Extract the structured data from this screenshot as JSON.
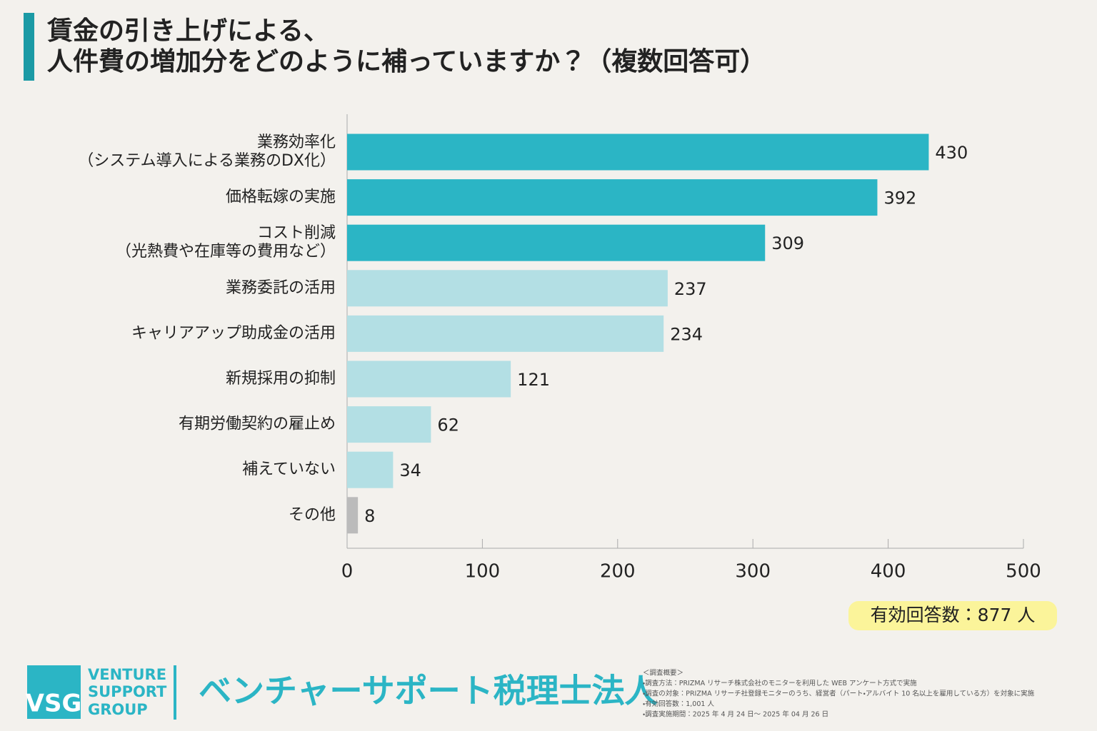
{
  "chart_data": {
    "type": "hbar",
    "title": [
      "賃金の引き上げによる、",
      "人件費の増加分をどのように補っていますか？（複数回答可）"
    ],
    "categories": [
      [
        "業務効率化",
        "（システム導入による業務のDX化）"
      ],
      [
        "価格転嫁の実施"
      ],
      [
        "コスト削減",
        "（光熱費や在庫等の費用など）"
      ],
      [
        "業務委託の活用"
      ],
      [
        "キャリアアップ助成金の活用"
      ],
      [
        "新規採用の抑制"
      ],
      [
        "有期労働契約の雇止め"
      ],
      [
        "補えていない"
      ],
      [
        "その他"
      ]
    ],
    "values": [
      430,
      392,
      309,
      237,
      234,
      121,
      62,
      34,
      8
    ],
    "colors": [
      "#2bb5c5",
      "#2bb5c5",
      "#2bb5c5",
      "#b3dfe4",
      "#b3dfe4",
      "#b3dfe4",
      "#b3dfe4",
      "#b3dfe4",
      "#bbbbbb"
    ],
    "xlim": [
      0,
      500
    ],
    "xticks": [
      0,
      100,
      200,
      300,
      400,
      500
    ],
    "annotation": "有効回答数：877 人"
  },
  "footer": {
    "logo": "VSG",
    "group": [
      "VENTURE",
      "SUPPORT",
      "GROUP"
    ],
    "company": "ベンチャーサポート税理士法人",
    "notes": [
      "＜調査概要＞",
      "・調査方法：PRIZMA リサーチ株式会社のモニターを利用した WEB アンケート方式で実施",
      "・調査の対象：PRIZMA リサーチ社登録モニターのうち、経営者（パート・アルバイト 10 名以上を雇用している方）を対象に実施",
      "・有効回答数：1,001 人",
      "・調査実施期間：2025 年 4 月 24 日～ 2025 年 04 月 26 日"
    ]
  }
}
